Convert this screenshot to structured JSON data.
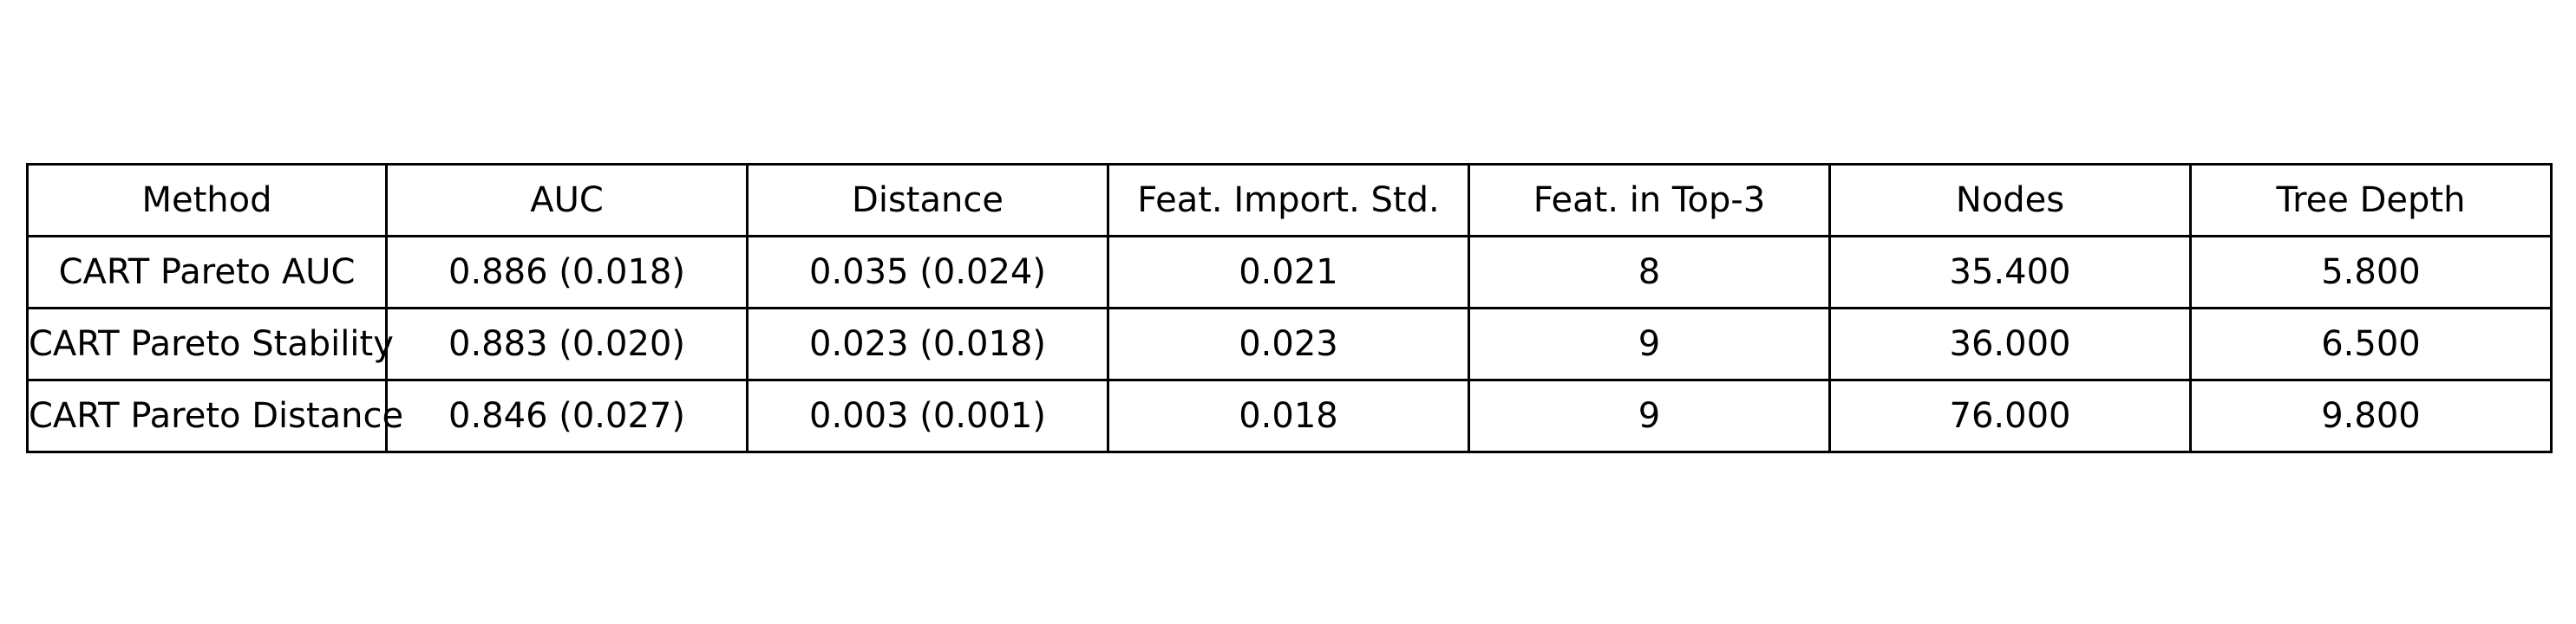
{
  "chart_data": {
    "type": "table",
    "columns": [
      "Method",
      "AUC",
      "Distance",
      "Feat. Import. Std.",
      "Feat. in Top-3",
      "Nodes",
      "Tree Depth"
    ],
    "rows": [
      [
        "CART Pareto AUC",
        "0.886 (0.018)",
        "0.035 (0.024)",
        "0.021",
        "8",
        "35.400",
        "5.800"
      ],
      [
        "CART Pareto Stability",
        "0.883 (0.020)",
        "0.023 (0.018)",
        "0.023",
        "9",
        "36.000",
        "6.500"
      ],
      [
        "CART Pareto Distance",
        "0.846 (0.027)",
        "0.003 (0.001)",
        "0.018",
        "9",
        "76.000",
        "9.800"
      ]
    ]
  }
}
